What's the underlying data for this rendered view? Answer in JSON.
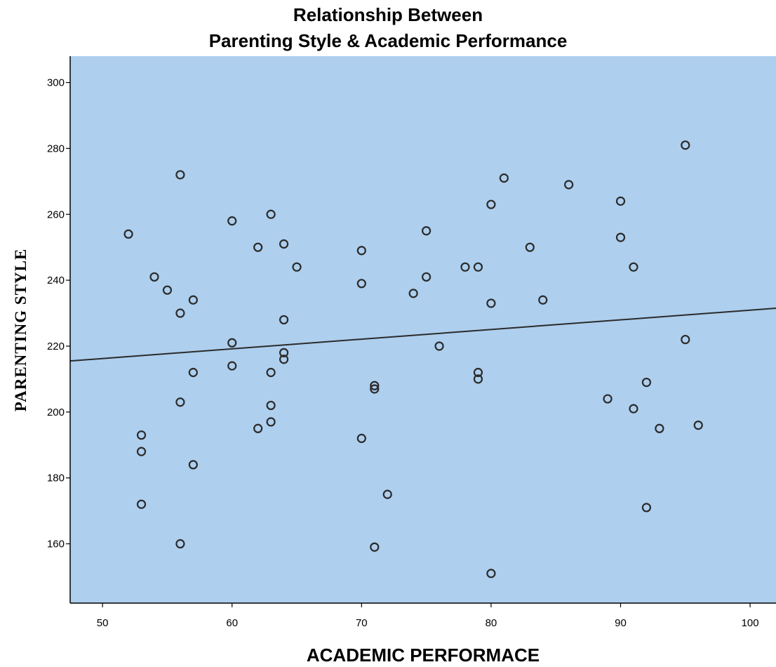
{
  "chart_data": {
    "type": "scatter",
    "title_lines": [
      "Relationship Between",
      "Parenting Style & Academic Performance"
    ],
    "xlabel": "ACADEMIC PERFORMACE",
    "ylabel": "PARENTING STYLE",
    "xlim": [
      47.5,
      102
    ],
    "ylim": [
      142,
      308
    ],
    "x_ticks": [
      50,
      60,
      70,
      80,
      90,
      100
    ],
    "y_ticks": [
      160,
      180,
      200,
      220,
      240,
      260,
      280,
      300
    ],
    "grid": false,
    "plot_background": "#aecfee",
    "point_color": "#2b2b2b",
    "fit_line": {
      "x": [
        47.5,
        102
      ],
      "y": [
        215.5,
        231.5
      ]
    },
    "points": [
      {
        "x": 52,
        "y": 254
      },
      {
        "x": 53,
        "y": 193
      },
      {
        "x": 53,
        "y": 188
      },
      {
        "x": 53,
        "y": 172
      },
      {
        "x": 54,
        "y": 241
      },
      {
        "x": 55,
        "y": 237
      },
      {
        "x": 56,
        "y": 272
      },
      {
        "x": 56,
        "y": 230
      },
      {
        "x": 56,
        "y": 203
      },
      {
        "x": 56,
        "y": 160
      },
      {
        "x": 57,
        "y": 234
      },
      {
        "x": 57,
        "y": 212
      },
      {
        "x": 57,
        "y": 184
      },
      {
        "x": 60,
        "y": 258
      },
      {
        "x": 60,
        "y": 221
      },
      {
        "x": 60,
        "y": 214
      },
      {
        "x": 62,
        "y": 250
      },
      {
        "x": 62,
        "y": 195
      },
      {
        "x": 63,
        "y": 260
      },
      {
        "x": 63,
        "y": 212
      },
      {
        "x": 63,
        "y": 202
      },
      {
        "x": 63,
        "y": 197
      },
      {
        "x": 64,
        "y": 251
      },
      {
        "x": 64,
        "y": 228
      },
      {
        "x": 64,
        "y": 218
      },
      {
        "x": 64,
        "y": 216
      },
      {
        "x": 65,
        "y": 244
      },
      {
        "x": 70,
        "y": 249
      },
      {
        "x": 70,
        "y": 239
      },
      {
        "x": 70,
        "y": 192
      },
      {
        "x": 71,
        "y": 208
      },
      {
        "x": 71,
        "y": 207
      },
      {
        "x": 71,
        "y": 159
      },
      {
        "x": 72,
        "y": 175
      },
      {
        "x": 74,
        "y": 236
      },
      {
        "x": 75,
        "y": 255
      },
      {
        "x": 75,
        "y": 241
      },
      {
        "x": 76,
        "y": 220
      },
      {
        "x": 78,
        "y": 244
      },
      {
        "x": 79,
        "y": 244
      },
      {
        "x": 79,
        "y": 212
      },
      {
        "x": 79,
        "y": 210
      },
      {
        "x": 80,
        "y": 263
      },
      {
        "x": 80,
        "y": 233
      },
      {
        "x": 80,
        "y": 151
      },
      {
        "x": 81,
        "y": 271
      },
      {
        "x": 83,
        "y": 250
      },
      {
        "x": 84,
        "y": 234
      },
      {
        "x": 86,
        "y": 269
      },
      {
        "x": 89,
        "y": 204
      },
      {
        "x": 90,
        "y": 264
      },
      {
        "x": 90,
        "y": 253
      },
      {
        "x": 91,
        "y": 244
      },
      {
        "x": 91,
        "y": 201
      },
      {
        "x": 92,
        "y": 209
      },
      {
        "x": 92,
        "y": 171
      },
      {
        "x": 93,
        "y": 195
      },
      {
        "x": 95,
        "y": 281
      },
      {
        "x": 95,
        "y": 222
      },
      {
        "x": 96,
        "y": 196
      }
    ]
  }
}
